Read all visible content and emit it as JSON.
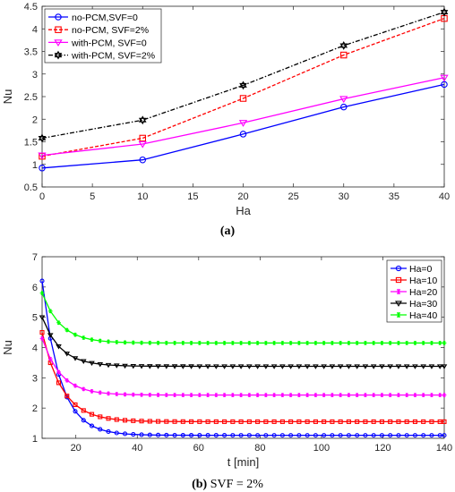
{
  "chart_data": [
    {
      "type": "line",
      "caption_letter": "(a)",
      "caption_rest": "",
      "xlabel": "Ha",
      "ylabel": "Nu",
      "xlim": [
        0,
        40
      ],
      "ylim": [
        0.5,
        4.5
      ],
      "xticks": [
        "0",
        "5",
        "10",
        "15",
        "20",
        "25",
        "30",
        "35",
        "40"
      ],
      "yticks": [
        "0.5",
        "1",
        "1.5",
        "2",
        "2.5",
        "3",
        "3.5",
        "4",
        "4.5"
      ],
      "legend_position": "top-left",
      "series": [
        {
          "name": "no-PCM,SVF=0",
          "color": "#0000ff",
          "marker": "circle",
          "dash": "solid",
          "x": [
            0,
            10,
            20,
            30,
            40
          ],
          "y": [
            0.92,
            1.1,
            1.67,
            2.27,
            2.77
          ]
        },
        {
          "name": "no-PCM, SVF=2%",
          "color": "#ff0000",
          "marker": "square",
          "dash": "dashed",
          "x": [
            0,
            10,
            20,
            30,
            40
          ],
          "y": [
            1.18,
            1.58,
            2.46,
            3.42,
            4.23
          ]
        },
        {
          "name": "with-PCM, SVF=0",
          "color": "#ff00ff",
          "marker": "triangle-down",
          "dash": "solid",
          "x": [
            0,
            10,
            20,
            30,
            40
          ],
          "y": [
            1.2,
            1.45,
            1.92,
            2.45,
            2.92
          ]
        },
        {
          "name": "with-PCM, SVF=2%",
          "color": "#000000",
          "marker": "hexagram",
          "dash": "dashdot",
          "x": [
            0,
            10,
            20,
            30,
            40
          ],
          "y": [
            1.58,
            1.98,
            2.75,
            3.63,
            4.37
          ]
        }
      ]
    },
    {
      "type": "line",
      "caption_letter": "(b)",
      "caption_rest": " SVF = 2%",
      "xlabel": "t [min]",
      "ylabel": "Nu",
      "xlim": [
        9,
        140
      ],
      "ylim": [
        1,
        7
      ],
      "xticks": [
        20,
        40,
        60,
        80,
        100,
        120,
        140
      ],
      "yticks": [
        1,
        2,
        3,
        4,
        5,
        6,
        7
      ],
      "legend_position": "top-right",
      "series": [
        {
          "name": "Ha=0",
          "color": "#0000ff",
          "marker": "circle",
          "start": 6.2,
          "end": 1.1,
          "tau": 5.8
        },
        {
          "name": "Ha=10",
          "color": "#ff0000",
          "marker": "square",
          "start": 4.5,
          "end": 1.55,
          "tau": 6.5
        },
        {
          "name": "Ha=20",
          "color": "#ff00ff",
          "marker": "star",
          "start": 4.3,
          "end": 2.43,
          "tau": 6.0
        },
        {
          "name": "Ha=30",
          "color": "#000000",
          "marker": "triangle-down",
          "start": 5.0,
          "end": 3.38,
          "tau": 6.0
        },
        {
          "name": "Ha=40",
          "color": "#00ff00",
          "marker": "star",
          "start": 5.8,
          "end": 4.15,
          "tau": 6.0
        }
      ]
    }
  ]
}
